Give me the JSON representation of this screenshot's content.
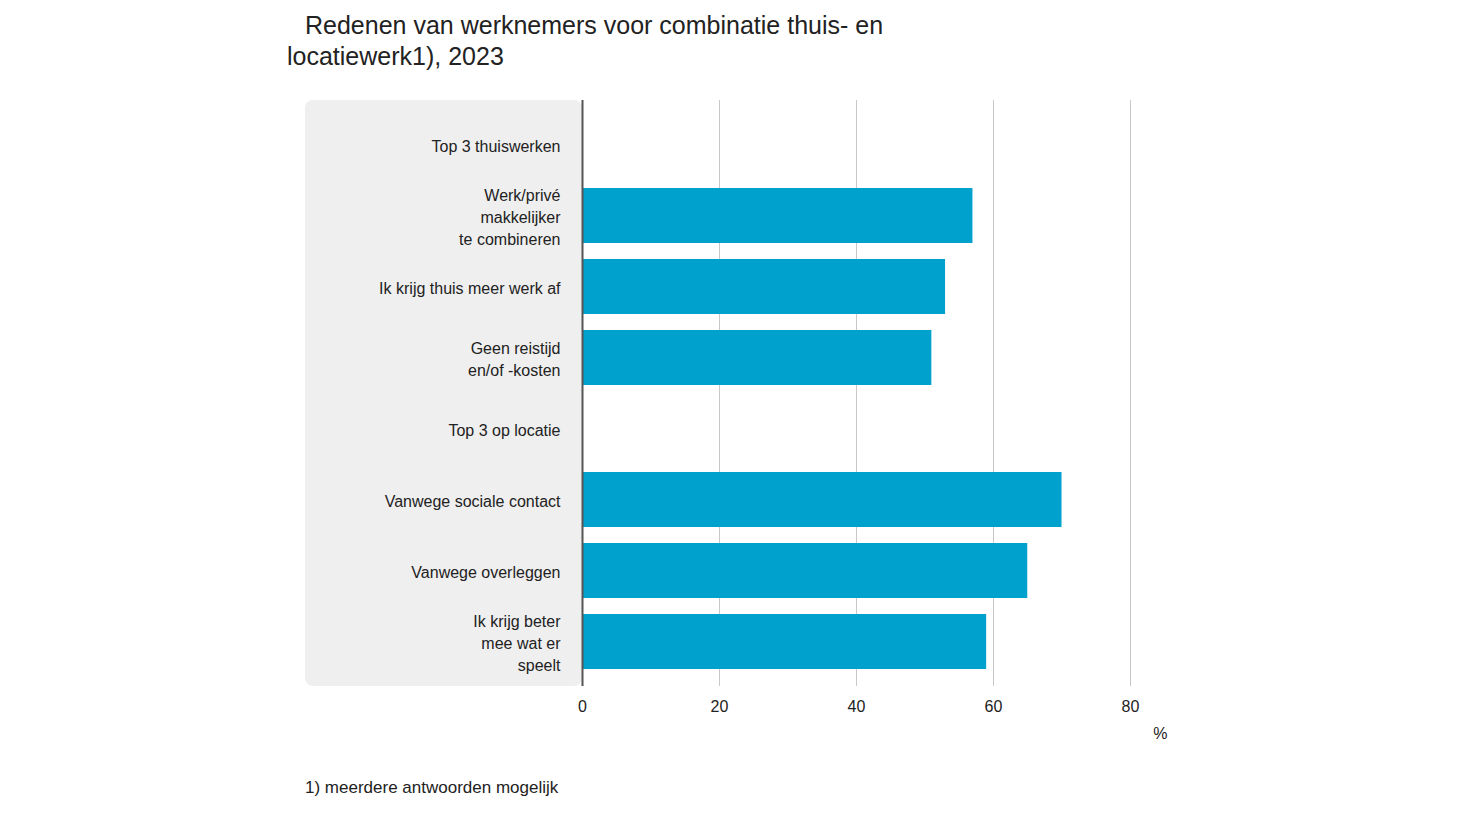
{
  "chart_data": {
    "type": "bar",
    "orientation": "horizontal",
    "title": "Redenen van werknemers voor combinatie thuis- en locatiewerk1), 2023",
    "categories": [
      "Top 3 thuiswerken",
      "Werk/privé\nmakkelijker\nte combineren",
      "Ik krijg thuis meer werk af",
      "Geen reistijd\nen/of -kosten",
      "Top 3 op locatie",
      "Vanwege sociale contact",
      "Vanwege overleggen",
      "Ik krijg beter\nmee wat er\nspeelt"
    ],
    "values": [
      null,
      57,
      53,
      51,
      null,
      70,
      65,
      59
    ],
    "color": "#00a1cd",
    "xlim": [
      0,
      80
    ],
    "xticks": [
      0,
      20,
      40,
      60,
      80
    ],
    "xlabel": "%",
    "grid": true,
    "annotations": [
      "1) meerdere antwoorden mogelijk"
    ]
  }
}
